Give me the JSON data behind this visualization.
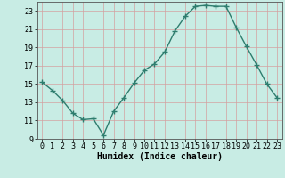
{
  "x": [
    0,
    1,
    2,
    3,
    4,
    5,
    6,
    7,
    8,
    9,
    10,
    11,
    12,
    13,
    14,
    15,
    16,
    17,
    18,
    19,
    20,
    21,
    22,
    23
  ],
  "y": [
    15.2,
    14.3,
    13.2,
    11.8,
    11.1,
    11.2,
    9.4,
    12.0,
    13.5,
    15.1,
    16.5,
    17.2,
    18.5,
    20.8,
    22.4,
    23.5,
    23.6,
    23.5,
    23.5,
    21.2,
    19.1,
    17.1,
    15.0,
    13.5
  ],
  "xlim": [
    -0.5,
    23.5
  ],
  "ylim": [
    9,
    24
  ],
  "yticks": [
    9,
    11,
    13,
    15,
    17,
    19,
    21,
    23
  ],
  "xticks": [
    0,
    1,
    2,
    3,
    4,
    5,
    6,
    7,
    8,
    9,
    10,
    11,
    12,
    13,
    14,
    15,
    16,
    17,
    18,
    19,
    20,
    21,
    22,
    23
  ],
  "xlabel": "Humidex (Indice chaleur)",
  "line_color": "#2e7d6e",
  "marker_color": "#2e7d6e",
  "bg_color": "#c8ece4",
  "grid_color": "#d4a0a0",
  "xlabel_fontsize": 7,
  "tick_fontsize": 6,
  "marker_size": 2.5,
  "line_width": 1.0
}
